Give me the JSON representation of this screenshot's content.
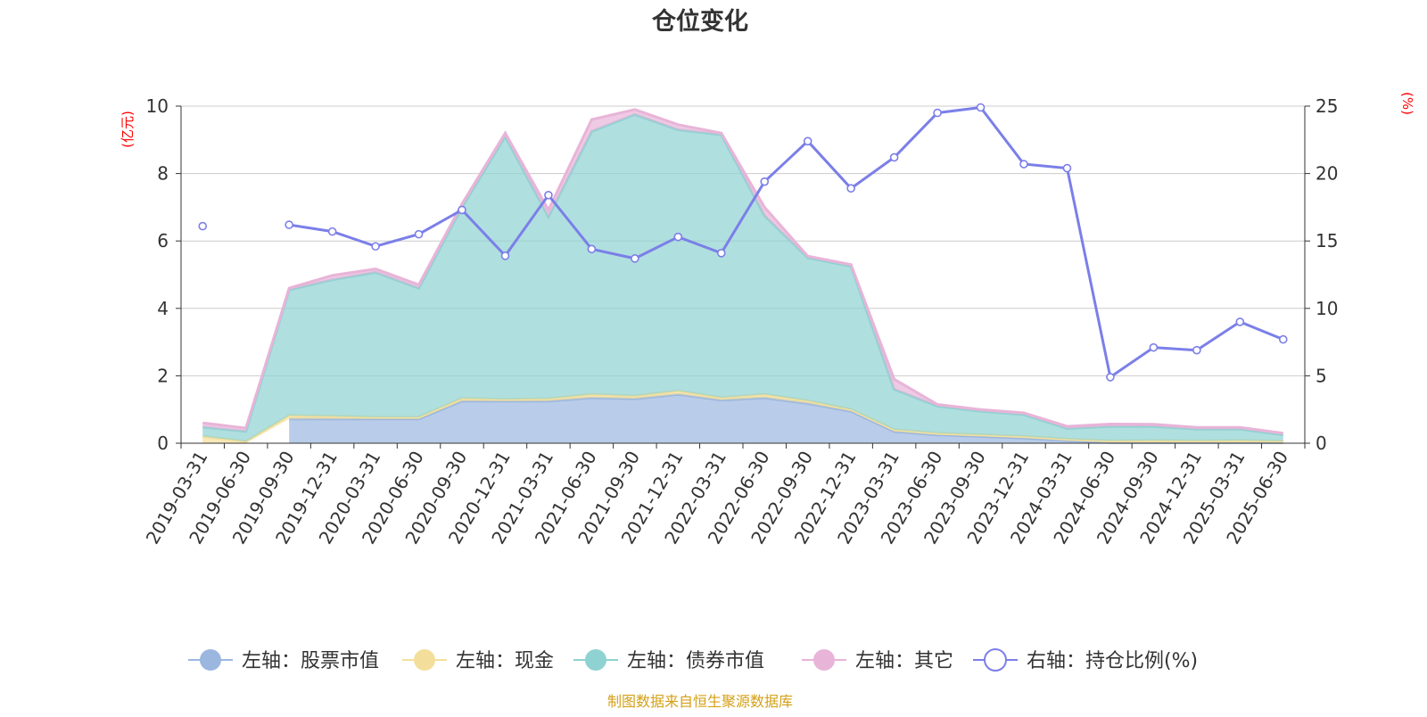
{
  "chart_data": {
    "type": "area",
    "title": "仓位变化",
    "source": "制图数据来自恒生聚源数据库",
    "left_axis_unit": "(亿元)",
    "right_axis_unit": "(%)",
    "ylim_left": [
      0,
      10
    ],
    "ylim_right": [
      0,
      25
    ],
    "yticks_left": [
      "0",
      "2",
      "4",
      "6",
      "8",
      "10"
    ],
    "yticks_right": [
      "0",
      "5",
      "10",
      "15",
      "20",
      "25"
    ],
    "grid": true,
    "legend_position": "bottom",
    "categories": [
      "2019-03-31",
      "2019-06-30",
      "2019-09-30",
      "2019-12-31",
      "2020-03-31",
      "2020-06-30",
      "2020-09-30",
      "2020-12-31",
      "2021-03-31",
      "2021-06-30",
      "2021-09-30",
      "2021-12-31",
      "2022-03-31",
      "2022-06-30",
      "2022-09-30",
      "2022-12-31",
      "2023-03-31",
      "2023-06-30",
      "2023-09-30",
      "2023-12-31",
      "2024-03-31",
      "2024-06-30",
      "2024-09-30",
      "2024-12-31",
      "2025-03-31",
      "2025-06-30"
    ],
    "series": [
      {
        "name": "左轴：股票市值",
        "axis": "left",
        "stack": true,
        "color": "#9bb7e0",
        "values": [
          null,
          null,
          0.72,
          0.72,
          0.72,
          0.72,
          1.25,
          1.25,
          1.25,
          1.35,
          1.32,
          1.45,
          1.28,
          1.35,
          1.18,
          0.95,
          0.35,
          0.25,
          0.2,
          0.15,
          0.08,
          0.02,
          0.02,
          0.02,
          0.02,
          0.02
        ]
      },
      {
        "name": "左轴：现金",
        "axis": "left",
        "stack": true,
        "color": "#f3df9b",
        "values": [
          0.2,
          0.05,
          0.1,
          0.08,
          0.05,
          0.05,
          0.08,
          0.05,
          0.07,
          0.1,
          0.08,
          0.1,
          0.07,
          0.1,
          0.08,
          0.05,
          0.05,
          0.05,
          0.05,
          0.05,
          0.04,
          0.05,
          0.06,
          0.05,
          0.06,
          0.04
        ]
      },
      {
        "name": "左轴：债券市值",
        "axis": "left",
        "stack": true,
        "color": "#8fd2d2",
        "values": [
          0.28,
          0.3,
          3.73,
          4.05,
          4.3,
          3.83,
          5.67,
          7.8,
          5.4,
          7.8,
          8.35,
          7.75,
          7.8,
          5.3,
          4.24,
          4.25,
          1.2,
          0.8,
          0.7,
          0.65,
          0.32,
          0.43,
          0.42,
          0.35,
          0.34,
          0.19
        ]
      },
      {
        "name": "左轴：其它",
        "axis": "left",
        "stack": true,
        "color": "#e8b4d8",
        "values": [
          0.12,
          0.1,
          0.05,
          0.13,
          0.1,
          0.1,
          0.1,
          0.1,
          0.2,
          0.35,
          0.15,
          0.15,
          0.05,
          0.25,
          0.05,
          0.05,
          0.3,
          0.05,
          0.05,
          0.05,
          0.06,
          0.07,
          0.06,
          0.05,
          0.05,
          0.05
        ]
      },
      {
        "name": "右轴：持仓比例(%)",
        "axis": "right",
        "type": "line",
        "color": "#7b7fe8",
        "values": [
          16.1,
          null,
          16.2,
          15.7,
          14.6,
          15.5,
          17.3,
          13.9,
          18.4,
          14.4,
          13.7,
          15.3,
          14.1,
          19.4,
          22.4,
          18.9,
          21.2,
          24.5,
          24.9,
          20.7,
          20.4,
          4.9,
          7.1,
          6.9,
          9.0,
          7.7
        ]
      }
    ]
  }
}
